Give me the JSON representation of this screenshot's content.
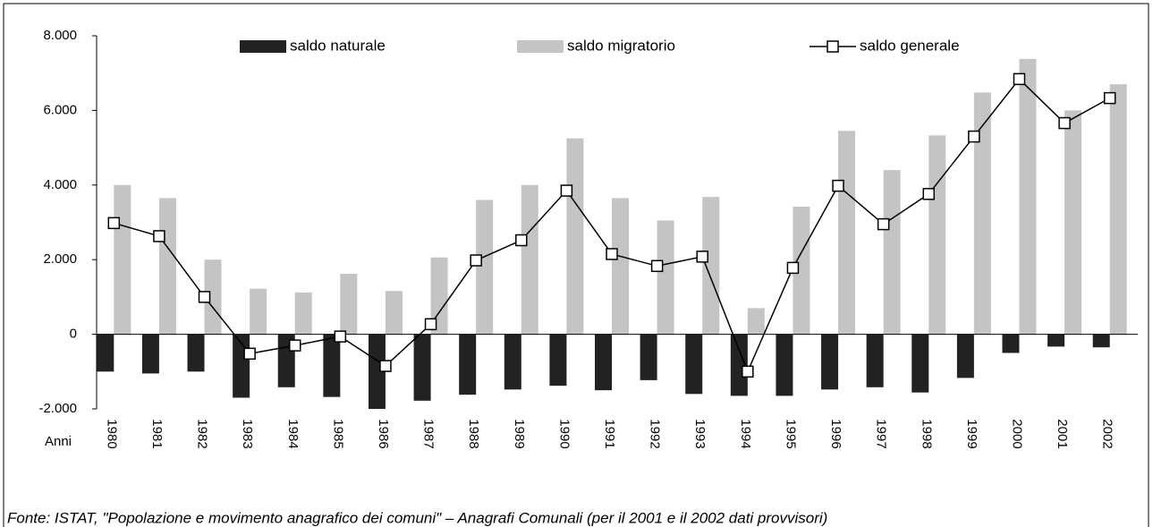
{
  "chart_data": {
    "type": "bar",
    "x_label": "Anni",
    "categories": [
      "1980",
      "1981",
      "1982",
      "1983",
      "1984",
      "1985",
      "1986",
      "1987",
      "1988",
      "1989",
      "1990",
      "1991",
      "1992",
      "1993",
      "1994",
      "1995",
      "1996",
      "1997",
      "1998",
      "1999",
      "2000",
      "2001",
      "2002"
    ],
    "series": [
      {
        "name": "saldo naturale",
        "type": "bar",
        "color": "#222222",
        "values": [
          -1000,
          -1050,
          -1000,
          -1700,
          -1420,
          -1680,
          -2000,
          -1780,
          -1620,
          -1480,
          -1380,
          -1500,
          -1230,
          -1600,
          -1650,
          -1650,
          -1480,
          -1420,
          -1560,
          -1170,
          -500,
          -330,
          -350
        ]
      },
      {
        "name": "saldo migratorio",
        "type": "bar",
        "color": "#c4c4c4",
        "values": [
          4000,
          3650,
          2000,
          1220,
          1120,
          1620,
          1160,
          2060,
          3600,
          4000,
          5250,
          3650,
          3050,
          3680,
          700,
          3420,
          5450,
          4400,
          5330,
          6480,
          7380,
          6000,
          6700
        ]
      },
      {
        "name": "saldo generale",
        "type": "line",
        "color": "#000000",
        "values": [
          2980,
          2630,
          1000,
          -520,
          -300,
          -60,
          -850,
          270,
          1980,
          2520,
          3850,
          2150,
          1830,
          2080,
          -1000,
          1780,
          3980,
          2950,
          3760,
          5300,
          6840,
          5660,
          6330
        ]
      }
    ],
    "ylim": [
      -2000,
      8000
    ],
    "yticks": [
      {
        "value": -2000,
        "label": "-2.000"
      },
      0,
      {
        "value": 2000,
        "label": "2.000"
      },
      {
        "value": 4000,
        "label": "4.000"
      },
      {
        "value": 6000,
        "label": "6.000"
      },
      {
        "value": 8000,
        "label": "8.000"
      }
    ],
    "legend": "top",
    "source": "Fonte: ISTAT, \"Popolazione e movimento anagrafico dei comuni\" – Anagrafi Comunali (per il 2001 e il 2002 dati provvisori)"
  }
}
